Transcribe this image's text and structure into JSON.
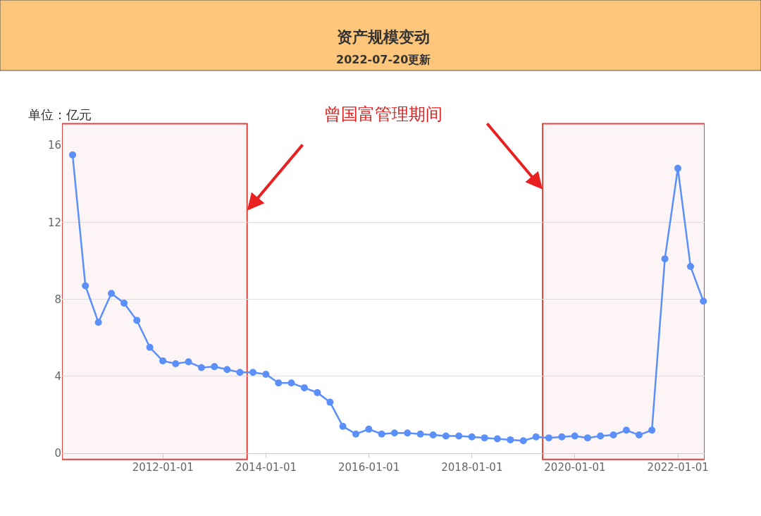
{
  "chart_data": {
    "type": "line",
    "title": "资产规模变动",
    "subtitle": "2022-07-20更新",
    "ylabel": "单位：亿元",
    "x": [
      "2010-03-31",
      "2010-06-30",
      "2010-09-30",
      "2010-12-31",
      "2011-03-31",
      "2011-06-30",
      "2011-09-30",
      "2011-12-31",
      "2012-03-31",
      "2012-06-30",
      "2012-09-30",
      "2012-12-31",
      "2013-03-31",
      "2013-06-30",
      "2013-09-30",
      "2013-12-31",
      "2014-03-31",
      "2014-06-30",
      "2014-09-30",
      "2014-12-31",
      "2015-03-31",
      "2015-06-30",
      "2015-09-30",
      "2015-12-31",
      "2016-03-31",
      "2016-06-30",
      "2016-09-30",
      "2016-12-31",
      "2017-03-31",
      "2017-06-30",
      "2017-09-30",
      "2017-12-31",
      "2018-03-31",
      "2018-06-30",
      "2018-09-30",
      "2018-12-31",
      "2019-03-31",
      "2019-06-30",
      "2019-09-30",
      "2019-12-31",
      "2020-03-31",
      "2020-06-30",
      "2020-09-30",
      "2020-12-31",
      "2021-03-31",
      "2021-06-30",
      "2021-09-30",
      "2021-12-31",
      "2022-03-31",
      "2022-06-30"
    ],
    "series": [
      {
        "color": "#5b8ff9",
        "values": [
          15.5,
          8.7,
          6.8,
          8.3,
          7.8,
          6.9,
          5.5,
          4.8,
          4.65,
          4.75,
          4.45,
          4.5,
          4.35,
          4.2,
          4.2,
          4.1,
          3.65,
          3.65,
          3.4,
          3.15,
          2.65,
          1.4,
          1.0,
          1.25,
          1.0,
          1.05,
          1.05,
          1.0,
          0.95,
          0.9,
          0.9,
          0.85,
          0.8,
          0.75,
          0.7,
          0.65,
          0.85,
          0.8,
          0.85,
          0.9,
          0.8,
          0.9,
          0.95,
          1.2,
          0.95,
          1.2,
          10.1,
          14.8,
          9.7,
          7.9
        ]
      }
    ],
    "xlim": [
      "2010-01-15",
      "2022-07-09"
    ],
    "xticks": [
      "2012-01-01",
      "2014-01-01",
      "2016-01-01",
      "2018-01-01",
      "2020-01-01",
      "2022-01-01"
    ],
    "ylim": [
      0,
      16
    ],
    "yticks": [
      0,
      4,
      8,
      12,
      16
    ],
    "grid": "y",
    "marker": "circle",
    "line_style": "solid",
    "bands": [
      {
        "axis": "x",
        "from": "2010-01-15",
        "to": "2013-08-20",
        "color": "#d9302c"
      },
      {
        "axis": "x",
        "from": "2019-05-17",
        "to": "2022-07-09",
        "color": "#d9302c"
      }
    ],
    "annotations": [
      "曾国富管理期间"
    ]
  }
}
